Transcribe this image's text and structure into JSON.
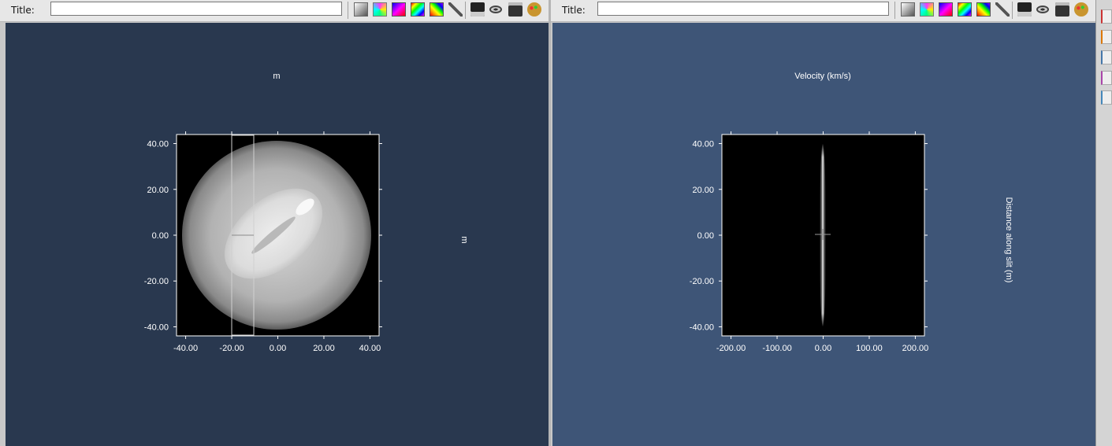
{
  "left_view": {
    "title_label": "Title:",
    "title_value": "",
    "top_axis_label": "m",
    "right_axis_label": "m",
    "x_ticks": [
      "-40.00",
      "-20.00",
      "0.00",
      "20.00",
      "40.00"
    ],
    "y_ticks": [
      "40.00",
      "20.00",
      "0.00",
      "-20.00",
      "-40.00"
    ]
  },
  "right_view": {
    "title_label": "Title:",
    "title_value": "",
    "top_axis_label": "Velocity (km/s)",
    "right_axis_label": "Distance along slit (m)",
    "x_ticks": [
      "-200.00",
      "-100.00",
      "0.00",
      "100.00",
      "200.00"
    ],
    "y_ticks": [
      "40.00",
      "20.00",
      "0.00",
      "-20.00",
      "-40.00"
    ]
  },
  "toolbar_icons": [
    "grayscale-colormap-icon",
    "rainbow-colormap-icon",
    "magenta-colormap-icon",
    "spectrum-colormap-icon",
    "hsv-colormap-icon",
    "wrench-icon",
    "image-icon",
    "eye-icon",
    "save-icon",
    "palette-icon"
  ],
  "colors": {
    "left_background": "#29384f",
    "right_background": "#3e5577",
    "toolbar": "#e7e7e7"
  }
}
